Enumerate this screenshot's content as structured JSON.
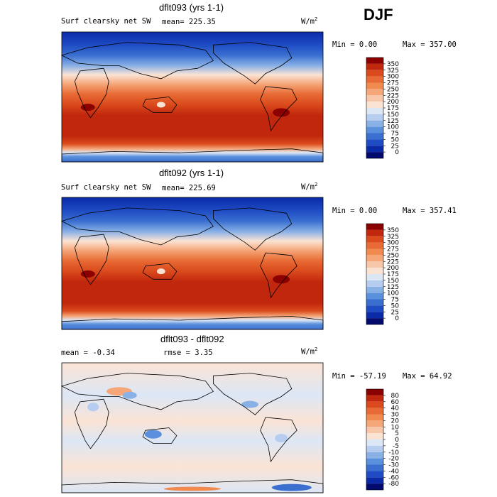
{
  "season_label": "DJF",
  "chart_data": [
    {
      "type": "heatmap",
      "title": "dflt093 (yrs 1-1)",
      "variable": "Surf clearsky net SW",
      "mean_text": "mean= 225.35",
      "units_base": "W/m",
      "units_exp": "2",
      "min_text": "Min =    0.00",
      "max_text": "Max = 357.00",
      "colorbar": {
        "levels": [
          "350",
          "325",
          "300",
          "275",
          "250",
          "225",
          "200",
          "175",
          "150",
          "125",
          "100",
          "75",
          "50",
          "25",
          "0"
        ],
        "colors": [
          "#8b0000",
          "#c1270d",
          "#da4a1c",
          "#e86a34",
          "#f08a4e",
          "#f5a77a",
          "#f8c6a8",
          "#fbe3d4",
          "#dce7f6",
          "#b6cdef",
          "#8ab1e6",
          "#5b90dc",
          "#3a6fd0",
          "#1f4cc4",
          "#0a2aa8",
          "#020a6e"
        ]
      }
    },
    {
      "type": "heatmap",
      "title": "dflt092 (yrs 1-1)",
      "variable": "Surf clearsky net SW",
      "mean_text": "mean= 225.69",
      "units_base": "W/m",
      "units_exp": "2",
      "min_text": "Min =    0.00",
      "max_text": "Max = 357.41",
      "colorbar": {
        "levels": [
          "350",
          "325",
          "300",
          "275",
          "250",
          "225",
          "200",
          "175",
          "150",
          "125",
          "100",
          "75",
          "50",
          "25",
          "0"
        ],
        "colors": [
          "#8b0000",
          "#c1270d",
          "#da4a1c",
          "#e86a34",
          "#f08a4e",
          "#f5a77a",
          "#f8c6a8",
          "#fbe3d4",
          "#dce7f6",
          "#b6cdef",
          "#8ab1e6",
          "#5b90dc",
          "#3a6fd0",
          "#1f4cc4",
          "#0a2aa8",
          "#020a6e"
        ]
      }
    },
    {
      "type": "heatmap",
      "title": "dflt093 - dflt092",
      "variable": "mean =  -0.34",
      "mean_text": "rmse =   3.35",
      "units_base": "W/m",
      "units_exp": "2",
      "min_text": "Min = -57.19",
      "max_text": "Max =  64.92",
      "colorbar": {
        "levels": [
          "80",
          "60",
          "40",
          "30",
          "20",
          "10",
          "5",
          "0",
          "-5",
          "-10",
          "-20",
          "-30",
          "-40",
          "-60",
          "-80"
        ],
        "colors": [
          "#8b0000",
          "#c1270d",
          "#da4a1c",
          "#e86a34",
          "#f08a4e",
          "#f5a77a",
          "#f8c6a8",
          "#fbe3d4",
          "#dce7f6",
          "#b6cdef",
          "#8ab1e6",
          "#5b90dc",
          "#3a6fd0",
          "#1f4cc4",
          "#0a2aa8",
          "#020a6e"
        ]
      }
    }
  ]
}
